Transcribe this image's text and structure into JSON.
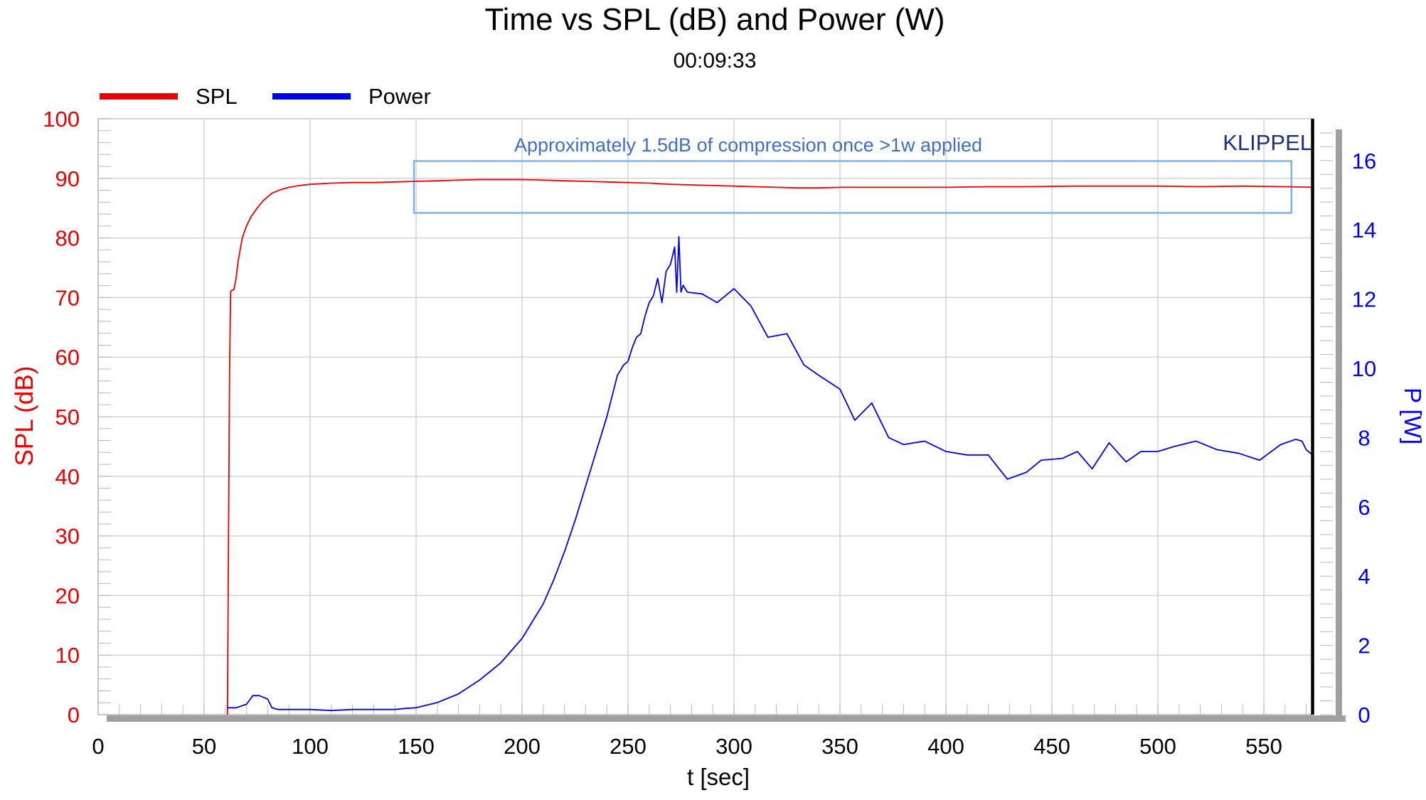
{
  "chart_data": {
    "type": "line",
    "title": "Time vs SPL (dB) and Power (W)",
    "subtitle": "00:09:33",
    "xlabel": "t [sec]",
    "ylabel_left": "SPL (dB)",
    "ylabel_right": "P [W]",
    "xlim": [
      0,
      588
    ],
    "ylim_left": [
      0,
      100
    ],
    "ylim_right": [
      0,
      17.2
    ],
    "x_ticks": [
      0,
      50,
      100,
      150,
      200,
      250,
      300,
      350,
      400,
      450,
      500,
      550
    ],
    "y_left_ticks": [
      0,
      10,
      20,
      30,
      40,
      50,
      60,
      70,
      80,
      90,
      100
    ],
    "y_right_ticks": [
      0,
      2,
      4,
      6,
      8,
      10,
      12,
      14,
      16
    ],
    "grid": true,
    "legend_position": "top-left",
    "watermark": "KLIPPEL",
    "annotation": {
      "text": "Approximately 1.5dB of compression once >1w applied",
      "x_range": [
        149,
        563
      ],
      "y_range": [
        84.2,
        92.9
      ]
    },
    "end_marker_x": 573,
    "series": [
      {
        "name": "SPL",
        "color": "#ee0000",
        "axis": "left",
        "x": [
          61,
          61.5,
          62,
          62.5,
          63,
          64,
          65,
          66,
          68,
          70,
          72,
          75,
          78,
          82,
          86,
          90,
          95,
          100,
          110,
          120,
          130,
          140,
          150,
          160,
          170,
          180,
          190,
          200,
          210,
          220,
          230,
          240,
          250,
          260,
          270,
          280,
          290,
          300,
          310,
          320,
          330,
          340,
          350,
          360,
          370,
          380,
          390,
          400,
          420,
          440,
          460,
          480,
          500,
          520,
          540,
          560,
          573
        ],
        "values": [
          0,
          30,
          58,
          71,
          71.2,
          71.3,
          73,
          76,
          80,
          82,
          83.5,
          85,
          86.3,
          87.5,
          88.1,
          88.5,
          88.8,
          89,
          89.2,
          89.3,
          89.3,
          89.4,
          89.5,
          89.6,
          89.7,
          89.8,
          89.8,
          89.8,
          89.7,
          89.6,
          89.5,
          89.4,
          89.3,
          89.2,
          89.0,
          88.9,
          88.8,
          88.7,
          88.6,
          88.5,
          88.4,
          88.4,
          88.5,
          88.5,
          88.5,
          88.5,
          88.5,
          88.5,
          88.6,
          88.6,
          88.7,
          88.7,
          88.7,
          88.6,
          88.7,
          88.6,
          88.5
        ]
      },
      {
        "name": "Power",
        "color": "#0000ee",
        "axis": "right",
        "x": [
          61,
          65,
          70,
          73,
          76,
          80,
          82,
          85,
          90,
          100,
          110,
          120,
          130,
          140,
          145,
          150,
          160,
          170,
          180,
          190,
          200,
          205,
          210,
          215,
          220,
          225,
          230,
          235,
          240,
          245,
          248,
          250,
          252,
          254,
          256,
          258,
          260,
          262,
          264,
          266,
          268,
          270,
          272,
          273,
          274,
          275,
          276,
          278,
          285,
          292,
          300,
          308,
          316,
          325,
          333,
          340,
          350,
          357,
          365,
          373,
          380,
          390,
          400,
          410,
          420,
          429,
          438,
          445,
          455,
          462,
          469,
          477,
          485,
          492,
          500,
          508,
          518,
          528,
          538,
          548,
          558,
          565,
          568,
          570,
          573
        ],
        "values": [
          0.2,
          0.2,
          0.3,
          0.55,
          0.55,
          0.45,
          0.2,
          0.15,
          0.15,
          0.15,
          0.12,
          0.15,
          0.15,
          0.15,
          0.18,
          0.2,
          0.35,
          0.6,
          1.0,
          1.5,
          2.2,
          2.7,
          3.2,
          3.9,
          4.7,
          5.6,
          6.6,
          7.6,
          8.6,
          9.8,
          10.1,
          10.2,
          10.6,
          10.9,
          11.0,
          11.5,
          11.9,
          12.1,
          12.6,
          11.9,
          12.8,
          13.0,
          13.5,
          12.2,
          13.8,
          12.2,
          12.4,
          12.2,
          12.15,
          11.9,
          12.3,
          11.8,
          10.9,
          11.0,
          10.1,
          9.8,
          9.4,
          8.5,
          9.0,
          8.0,
          7.8,
          7.9,
          7.6,
          7.5,
          7.5,
          6.8,
          7.0,
          7.35,
          7.4,
          7.6,
          7.1,
          7.85,
          7.3,
          7.6,
          7.6,
          7.75,
          7.9,
          7.65,
          7.55,
          7.35,
          7.8,
          7.95,
          7.9,
          7.65,
          7.5
        ]
      }
    ]
  }
}
